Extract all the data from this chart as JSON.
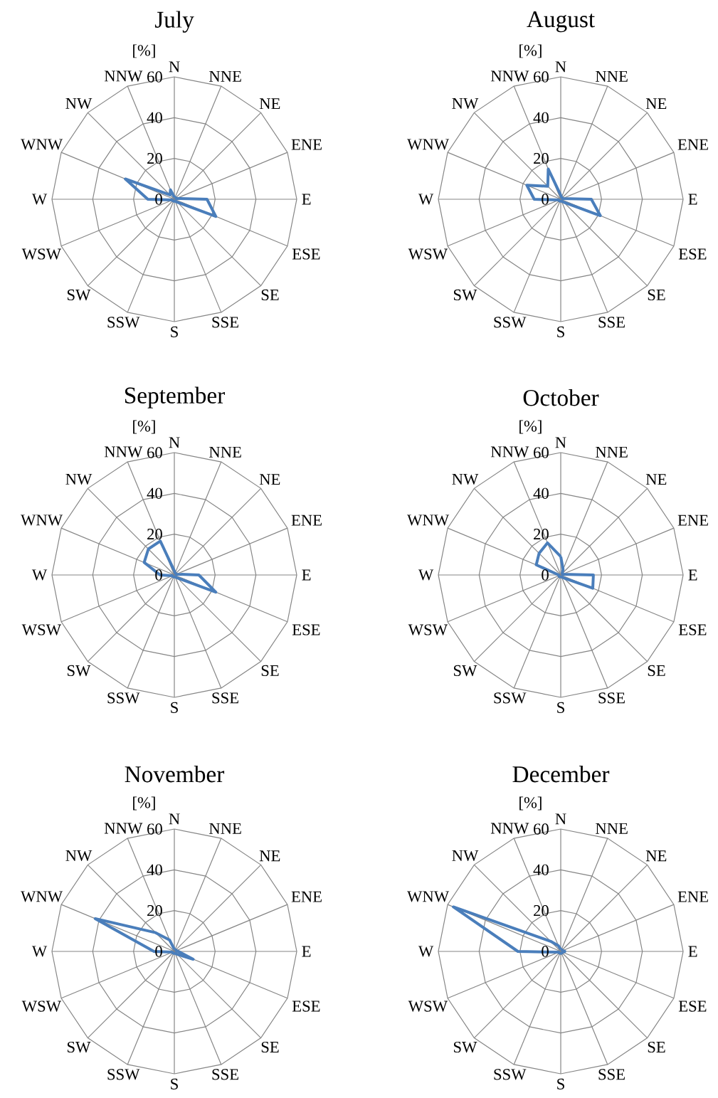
{
  "chart_data": [
    {
      "type": "radar",
      "title": "July",
      "ylabel": "[%]",
      "categories": [
        "N",
        "NNE",
        "NE",
        "ENE",
        "E",
        "ESE",
        "SE",
        "SSE",
        "S",
        "SSW",
        "SW",
        "WSW",
        "W",
        "WNW",
        "NW",
        "NNW"
      ],
      "ylim": [
        0,
        60
      ],
      "yticks": [
        0,
        20,
        40,
        60
      ],
      "grid": true,
      "series": [
        {
          "color": "#4a7ebb",
          "values": [
            1,
            1,
            1,
            1,
            16,
            22,
            2,
            1,
            1,
            1,
            1,
            1,
            13,
            26,
            3,
            5
          ]
        }
      ]
    },
    {
      "type": "radar",
      "title": "August",
      "ylabel": "[%]",
      "categories": [
        "N",
        "NNE",
        "NE",
        "ENE",
        "E",
        "ESE",
        "SE",
        "SSE",
        "S",
        "SSW",
        "SW",
        "WSW",
        "W",
        "WNW",
        "NW",
        "NNW"
      ],
      "ylim": [
        0,
        60
      ],
      "yticks": [
        0,
        20,
        40,
        60
      ],
      "grid": true,
      "series": [
        {
          "color": "#4a7ebb",
          "values": [
            2,
            1,
            1,
            1,
            15,
            21,
            2,
            1,
            1,
            1,
            1,
            1,
            13,
            18,
            9,
            16
          ]
        }
      ]
    },
    {
      "type": "radar",
      "title": "September",
      "ylabel": "[%]",
      "categories": [
        "N",
        "NNE",
        "NE",
        "ENE",
        "E",
        "ESE",
        "SE",
        "SSE",
        "S",
        "SSW",
        "SW",
        "WSW",
        "W",
        "WNW",
        "NW",
        "NNW"
      ],
      "ylim": [
        0,
        60
      ],
      "yticks": [
        0,
        20,
        40,
        60
      ],
      "grid": true,
      "series": [
        {
          "color": "#4a7ebb",
          "values": [
            2,
            1,
            1,
            1,
            12,
            22,
            2,
            1,
            1,
            1,
            1,
            1,
            7,
            16,
            18,
            18
          ]
        }
      ]
    },
    {
      "type": "radar",
      "title": "October",
      "ylabel": "[%]",
      "categories": [
        "N",
        "NNE",
        "NE",
        "ENE",
        "E",
        "ESE",
        "SE",
        "SSE",
        "S",
        "SSW",
        "SW",
        "WSW",
        "W",
        "WNW",
        "NW",
        "NNW"
      ],
      "ylim": [
        0,
        60
      ],
      "yticks": [
        0,
        20,
        40,
        60
      ],
      "grid": true,
      "series": [
        {
          "color": "#4a7ebb",
          "values": [
            9,
            3,
            1,
            1,
            16,
            17,
            2,
            1,
            1,
            1,
            1,
            1,
            1,
            13,
            15,
            17
          ]
        }
      ]
    },
    {
      "type": "radar",
      "title": "November",
      "ylabel": "[%]",
      "categories": [
        "N",
        "NNE",
        "NE",
        "ENE",
        "E",
        "ESE",
        "SE",
        "SSE",
        "S",
        "SSW",
        "SW",
        "WSW",
        "W",
        "WNW",
        "NW",
        "NNW"
      ],
      "ylim": [
        0,
        60
      ],
      "yticks": [
        0,
        20,
        40,
        60
      ],
      "grid": true,
      "series": [
        {
          "color": "#4a7ebb",
          "values": [
            1,
            1,
            1,
            1,
            2,
            10,
            2,
            1,
            1,
            1,
            1,
            1,
            10,
            42,
            13,
            6
          ]
        }
      ]
    },
    {
      "type": "radar",
      "title": "December",
      "ylabel": "[%]",
      "categories": [
        "N",
        "NNE",
        "NE",
        "ENE",
        "E",
        "ESE",
        "SE",
        "SSE",
        "S",
        "SSW",
        "SW",
        "WSW",
        "W",
        "WNW",
        "NW",
        "NNW"
      ],
      "ylim": [
        0,
        60
      ],
      "yticks": [
        0,
        20,
        40,
        60
      ],
      "grid": true,
      "series": [
        {
          "color": "#4a7ebb",
          "values": [
            1,
            1,
            1,
            1,
            2,
            1,
            1,
            1,
            1,
            1,
            1,
            1,
            21,
            57,
            7,
            3
          ]
        }
      ]
    }
  ]
}
